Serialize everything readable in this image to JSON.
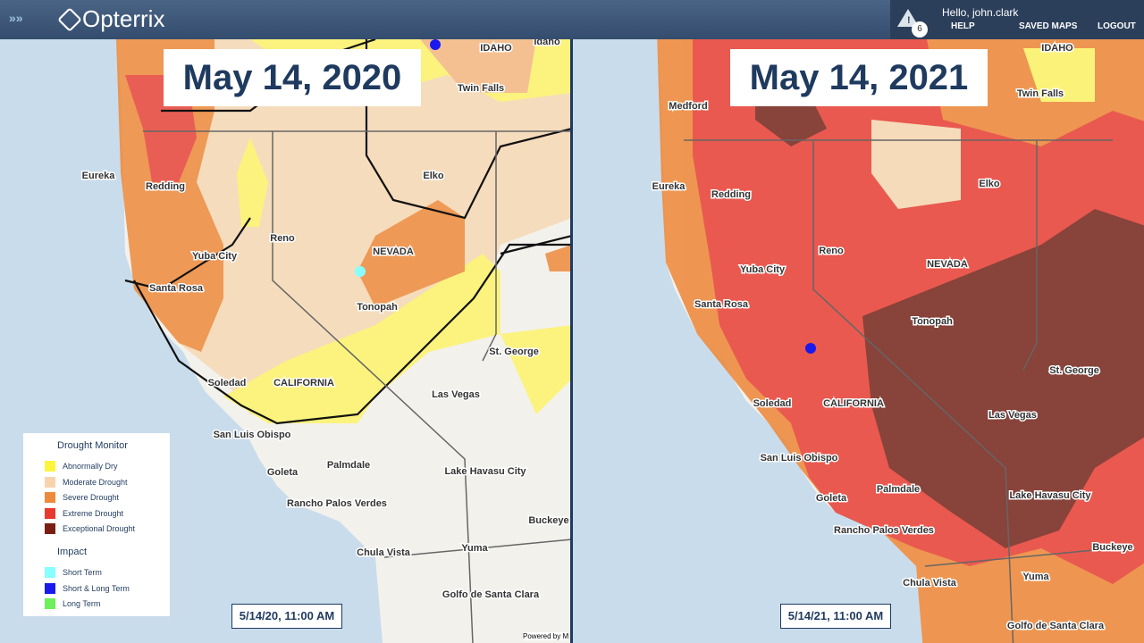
{
  "header": {
    "logo": "Opterrix",
    "alert_count": "6",
    "greeting": "Hello, john.clark",
    "nav": [
      "HELP",
      "SAVED MAPS",
      "LOGOUT"
    ]
  },
  "maps": [
    {
      "title": "May 14, 2020",
      "timestamp": "5/14/20, 11:00 AM",
      "places": [
        "Idaho",
        "IDAHO",
        "Twin Falls",
        "Eureka",
        "Redding",
        "Elko",
        "Reno",
        "NEVADA",
        "Yuba City",
        "Santa Rosa",
        "Tonopah",
        "St. George",
        "Soledad",
        "CALIFORNIA",
        "Las Vegas",
        "San Luis Obispo",
        "Palmdale",
        "Lake Havasu City",
        "Goleta",
        "Rancho Palos Verdes",
        "Buckeye",
        "Chula Vista",
        "Yuma",
        "Golfo de Santa Clara"
      ],
      "attribution": "Powered by M"
    },
    {
      "title": "May 14, 2021",
      "timestamp": "5/14/21, 11:00 AM",
      "places": [
        "IDAHO",
        "Twin Falls",
        "Medford",
        "Eureka",
        "Redding",
        "Elko",
        "Reno",
        "NEVADA",
        "Yuba City",
        "Santa Rosa",
        "Tonopah",
        "St. George",
        "Soledad",
        "CALIFORNIA",
        "Las Vegas",
        "San Luis Obispo",
        "Palmdale",
        "Lake Havasu City",
        "Goleta",
        "Rancho Palos Verdes",
        "Buckeye",
        "Chula Vista",
        "Yuma",
        "Golfo de Santa Clara"
      ]
    }
  ],
  "legend": {
    "drought_title": "Drought Monitor",
    "drought_items": [
      "Abnormally Dry",
      "Moderate Drought",
      "Severe Drought",
      "Extreme Drought",
      "Exceptional Drought"
    ],
    "impact_title": "Impact",
    "impact_items": [
      "Short Term",
      "Short & Long Term",
      "Long Term"
    ]
  }
}
